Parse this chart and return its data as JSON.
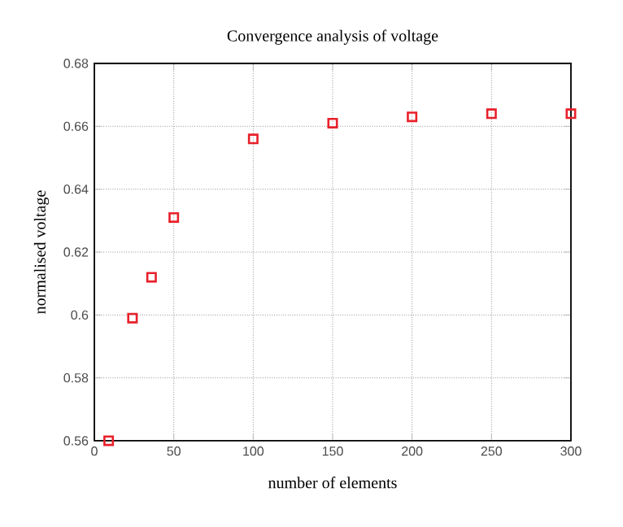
{
  "chart_data": {
    "type": "scatter",
    "title": "Convergence analysis of voltage",
    "xlabel": "number of elements",
    "ylabel": "normalised voltage",
    "x": [
      9,
      24,
      36,
      50,
      100,
      150,
      200,
      250,
      300
    ],
    "values": [
      0.56,
      0.599,
      0.612,
      0.631,
      0.656,
      0.661,
      0.663,
      0.664,
      0.664
    ],
    "color": "#e8202a",
    "marker": "square",
    "xlim": [
      0,
      300
    ],
    "ylim": [
      0.56,
      0.68
    ],
    "xticks": [
      0,
      50,
      100,
      150,
      200,
      250,
      300
    ],
    "yticks": [
      0.56,
      0.58,
      0.6,
      0.62,
      0.64,
      0.66,
      0.68
    ],
    "grid": true
  }
}
